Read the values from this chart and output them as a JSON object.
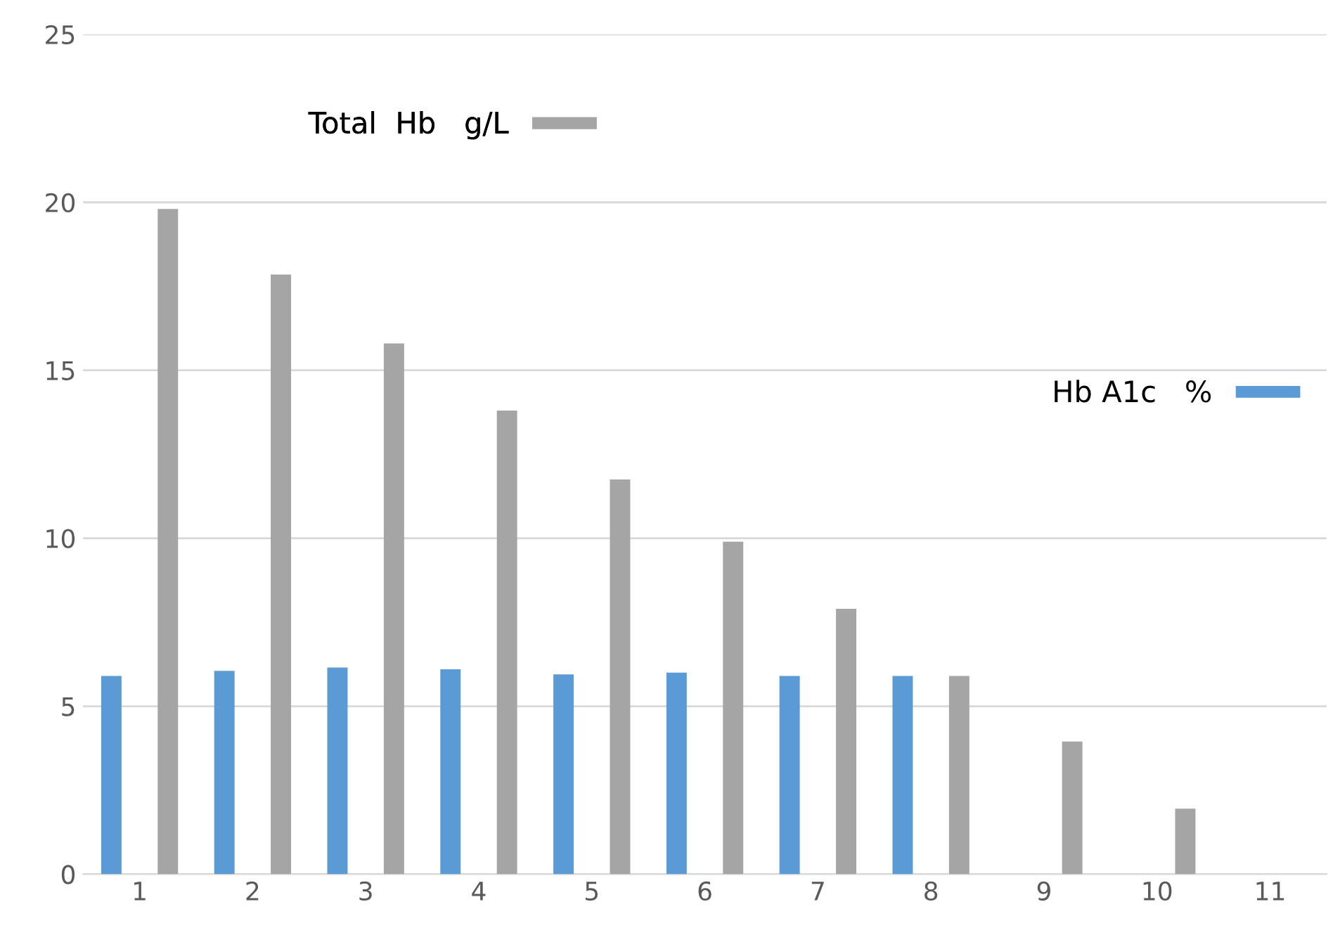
{
  "chart_data": {
    "type": "bar",
    "categories": [
      "1",
      "2",
      "3",
      "4",
      "5",
      "6",
      "7",
      "8",
      "9",
      "10",
      "11"
    ],
    "series": [
      {
        "name": "Hb A1c   %",
        "color": "#5b9bd5",
        "values": [
          5.9,
          6.05,
          6.15,
          6.1,
          5.95,
          6.0,
          5.9,
          5.9,
          null,
          null,
          null
        ]
      },
      {
        "name": "Total  Hb   g/L",
        "color": "#a5a5a5",
        "values": [
          19.8,
          17.85,
          15.8,
          13.8,
          11.75,
          9.9,
          7.9,
          5.9,
          3.95,
          1.95,
          null
        ]
      }
    ],
    "ylim": [
      0,
      25
    ],
    "yticks": [
      0,
      5,
      10,
      15,
      20,
      25
    ],
    "grid": "y",
    "legend": "right"
  }
}
